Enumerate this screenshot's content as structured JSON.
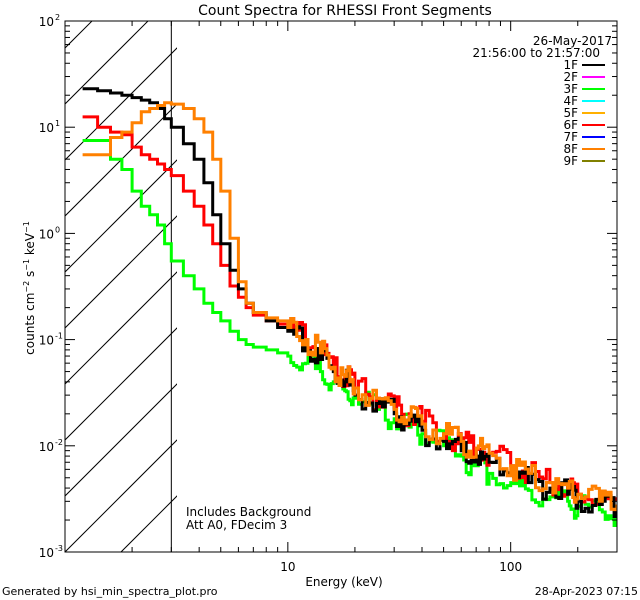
{
  "chart_data": {
    "type": "line",
    "title": "Count Spectra for RHESSI Front Segments",
    "xlabel": "Energy (keV)",
    "ylabel": "counts cm-2 s-1 keV-1",
    "xscale": "log",
    "yscale": "log",
    "xlim": [
      1.0,
      300.0
    ],
    "ylim": [
      0.001,
      100
    ],
    "x_ticks": [
      {
        "value": 10,
        "label": "10"
      },
      {
        "value": 100,
        "label": "100"
      }
    ],
    "y_ticks": [
      {
        "value": 0.001,
        "base": "10",
        "exp": "-3"
      },
      {
        "value": 0.01,
        "base": "10",
        "exp": "-2"
      },
      {
        "value": 0.1,
        "base": "10",
        "exp": "-1"
      },
      {
        "value": 1,
        "base": "10",
        "exp": "0"
      },
      {
        "value": 10,
        "base": "10",
        "exp": "1"
      },
      {
        "value": 100,
        "base": "10",
        "exp": "2"
      }
    ],
    "date": "26-May-2017",
    "time_range": "21:56:00 to 21:57:00",
    "attenuator_threshold_keV": 3.0,
    "annotations": [
      "Includes Background",
      "Att A0, FDecim 3"
    ],
    "legend_position": "top-right",
    "legend": [
      {
        "label": "1F",
        "color": "#000000"
      },
      {
        "label": "2F",
        "color": "#ff00ff"
      },
      {
        "label": "3F",
        "color": "#00ff00"
      },
      {
        "label": "4F",
        "color": "#00ffff"
      },
      {
        "label": "5F",
        "color": "#ffb000"
      },
      {
        "label": "6F",
        "color": "#ff0000"
      },
      {
        "label": "7F",
        "color": "#0000ff"
      },
      {
        "label": "8F",
        "color": "#ff8000"
      },
      {
        "label": "9F",
        "color": "#808000"
      }
    ],
    "series": [
      {
        "name": "1F",
        "color": "#000000",
        "x": [
          1.2,
          1.4,
          1.6,
          1.8,
          2.0,
          2.2,
          2.4,
          2.6,
          2.8,
          3.0,
          3.4,
          3.8,
          4.2,
          4.6,
          5.0,
          5.5,
          6.0,
          6.5,
          7.0,
          8.0,
          9.0,
          10.0,
          12.0,
          14.0,
          16.0,
          18.0,
          20.0,
          25.0,
          30.0,
          35.0,
          40.0,
          50.0,
          60.0,
          70.0,
          80.0,
          100.0,
          120.0,
          150.0,
          180.0,
          200.0,
          250.0,
          300.0
        ],
        "y": [
          23,
          22,
          21,
          20,
          19,
          18,
          17,
          15,
          12,
          10,
          7,
          5,
          3,
          1.5,
          0.8,
          0.45,
          0.3,
          0.22,
          0.18,
          0.15,
          0.13,
          0.12,
          0.09,
          0.065,
          0.05,
          0.04,
          0.03,
          0.025,
          0.02,
          0.017,
          0.014,
          0.011,
          0.009,
          0.008,
          0.007,
          0.0055,
          0.0045,
          0.004,
          0.0035,
          0.003,
          0.0028,
          0.0025
        ]
      },
      {
        "name": "3F",
        "color": "#00ff00",
        "x": [
          1.2,
          1.4,
          1.6,
          1.8,
          2.0,
          2.2,
          2.4,
          2.6,
          2.8,
          3.0,
          3.4,
          3.8,
          4.2,
          4.6,
          5.0,
          5.5,
          6.0,
          6.5,
          7.0,
          8.0,
          9.0,
          10.0,
          12.0,
          14.0,
          16.0,
          18.0,
          20.0,
          25.0,
          30.0,
          35.0,
          40.0,
          50.0,
          60.0,
          70.0,
          80.0,
          100.0,
          120.0,
          150.0,
          180.0,
          200.0,
          250.0,
          300.0
        ],
        "y": [
          7.5,
          7.5,
          5,
          4,
          2.5,
          1.8,
          1.5,
          1.2,
          0.8,
          0.55,
          0.4,
          0.3,
          0.22,
          0.18,
          0.15,
          0.12,
          0.1,
          0.09,
          0.085,
          0.08,
          0.075,
          0.07,
          0.06,
          0.05,
          0.04,
          0.033,
          0.028,
          0.022,
          0.018,
          0.015,
          0.013,
          0.01,
          0.008,
          0.0065,
          0.0055,
          0.0045,
          0.0038,
          0.0033,
          0.003,
          0.0027,
          0.0025,
          0.0022
        ]
      },
      {
        "name": "6F",
        "color": "#ff0000",
        "x": [
          1.2,
          1.4,
          1.6,
          1.8,
          2.0,
          2.2,
          2.4,
          2.6,
          2.8,
          3.0,
          3.4,
          3.8,
          4.2,
          4.6,
          5.0,
          5.5,
          6.0,
          6.5,
          7.0,
          8.0,
          9.0,
          10.0,
          12.0,
          14.0,
          16.0,
          18.0,
          20.0,
          25.0,
          30.0,
          35.0,
          40.0,
          50.0,
          60.0,
          70.0,
          80.0,
          100.0,
          120.0,
          150.0,
          180.0,
          200.0,
          250.0,
          300.0
        ],
        "y": [
          12.5,
          10,
          9,
          8.5,
          6.5,
          5.5,
          5,
          4.5,
          4,
          3.5,
          2.5,
          1.8,
          1.2,
          0.8,
          0.5,
          0.32,
          0.25,
          0.2,
          0.17,
          0.15,
          0.14,
          0.13,
          0.1,
          0.075,
          0.055,
          0.045,
          0.035,
          0.028,
          0.023,
          0.02,
          0.017,
          0.013,
          0.011,
          0.0095,
          0.0085,
          0.0065,
          0.0055,
          0.0045,
          0.004,
          0.0035,
          0.0032,
          0.003
        ]
      },
      {
        "name": "8F",
        "color": "#ff8000",
        "x": [
          1.2,
          1.4,
          1.6,
          1.8,
          2.0,
          2.2,
          2.4,
          2.6,
          2.8,
          3.0,
          3.4,
          3.8,
          4.2,
          4.6,
          5.0,
          5.5,
          6.0,
          6.5,
          7.0,
          8.0,
          9.0,
          10.0,
          12.0,
          14.0,
          16.0,
          18.0,
          20.0,
          25.0,
          30.0,
          35.0,
          40.0,
          50.0,
          60.0,
          70.0,
          80.0,
          100.0,
          120.0,
          150.0,
          180.0,
          200.0,
          250.0,
          300.0
        ],
        "y": [
          5.5,
          5.5,
          8,
          9,
          11,
          14,
          15,
          16,
          17,
          16.5,
          15,
          12,
          9,
          5,
          2.5,
          0.9,
          0.35,
          0.22,
          0.18,
          0.16,
          0.15,
          0.13,
          0.1,
          0.075,
          0.055,
          0.045,
          0.035,
          0.028,
          0.022,
          0.019,
          0.016,
          0.013,
          0.011,
          0.0095,
          0.0085,
          0.0065,
          0.0055,
          0.0045,
          0.004,
          0.0035,
          0.003,
          0.0028
        ]
      }
    ]
  },
  "footer": {
    "generated_by": "Generated by hsi_min_spectra_plot.pro",
    "timestamp": "28-Apr-2023 07:15"
  }
}
